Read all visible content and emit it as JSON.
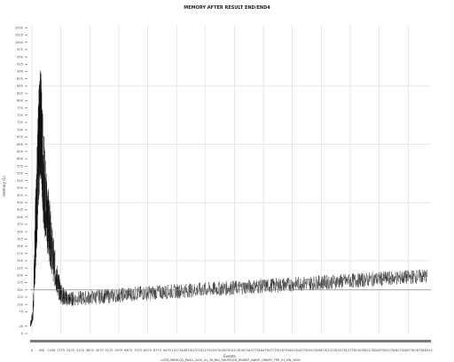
{
  "chart_data": {
    "type": "line",
    "title": "MEMORY AFTER RESULT END/END4",
    "xlabel": "Events",
    "ylabel": "memory (L)",
    "subtitle": "LGFD_MEMLOG_EN10_2010_01_30_BIG_SHUFFLED_NVIDEF_NAIVE_GRAPH_TRP_01_EW_1000",
    "xlim": [
      0,
      29250
    ],
    "ylim": [
      0,
      1060
    ],
    "x_ticks": [
      "0",
      "450",
      "1250",
      "1775",
      "2475",
      "3175",
      "3875",
      "4575",
      "5275",
      "5975",
      "6675",
      "7375",
      "8075",
      "8775",
      "9475",
      "10175",
      "10875",
      "11575",
      "12275",
      "12975",
      "13675",
      "14375",
      "15075",
      "15775",
      "16475",
      "17175",
      "17875",
      "18575",
      "19275",
      "19975",
      "20675",
      "21375",
      "22075",
      "22775",
      "23475",
      "24175",
      "24875",
      "25575",
      "26275",
      "26975",
      "27675",
      "28375"
    ],
    "y_ticks": [
      0,
      25,
      75,
      100,
      125,
      150,
      175,
      200,
      225,
      250,
      275,
      300,
      325,
      350,
      375,
      400,
      425,
      450,
      475,
      500,
      525,
      550,
      575,
      600,
      625,
      650,
      675,
      700,
      725,
      750,
      775,
      800,
      825,
      850,
      875,
      900,
      925,
      950,
      975,
      1000,
      1025,
      1050
    ],
    "grid": true,
    "reference_line_y": 150,
    "series": [
      {
        "x": [
          0,
          200,
          350,
          450,
          550,
          650,
          750,
          850,
          950,
          1100,
          1250,
          1400,
          1550,
          1775,
          2000,
          2200,
          2475,
          2800,
          3175,
          3875,
          4575,
          5275,
          5975,
          6675,
          7375,
          8075,
          8775,
          9475,
          10175,
          10875,
          11575,
          12275,
          12975,
          13675,
          14375,
          15075,
          15775,
          16475,
          17175,
          17875,
          18575,
          19275,
          19975,
          20675,
          21375,
          22075,
          22775,
          23475,
          24175,
          24875,
          25575,
          26275,
          26975,
          27675,
          28375,
          29000
        ],
        "values": [
          30,
          60,
          280,
          430,
          540,
          660,
          750,
          640,
          560,
          470,
          410,
          360,
          300,
          230,
          175,
          145,
          125,
          118,
          120,
          122,
          125,
          128,
          130,
          133,
          136,
          138,
          140,
          142,
          144,
          146,
          148,
          150,
          152,
          154,
          156,
          158,
          160,
          162,
          164,
          166,
          168,
          170,
          172,
          174,
          176,
          178,
          180,
          182,
          184,
          186,
          188,
          190,
          192,
          194,
          196,
          198
        ],
        "noise": [
          10,
          20,
          120,
          160,
          180,
          200,
          210,
          190,
          170,
          150,
          130,
          110,
          90,
          70,
          50,
          40,
          30,
          25,
          25,
          25,
          25,
          25,
          25,
          25,
          25,
          25,
          25,
          25,
          25,
          25,
          25,
          25,
          25,
          25,
          25,
          25,
          25,
          25,
          25,
          25,
          25,
          25,
          25,
          25,
          25,
          25,
          25,
          25,
          25,
          25,
          25,
          25,
          25,
          25,
          25,
          25
        ]
      }
    ]
  }
}
